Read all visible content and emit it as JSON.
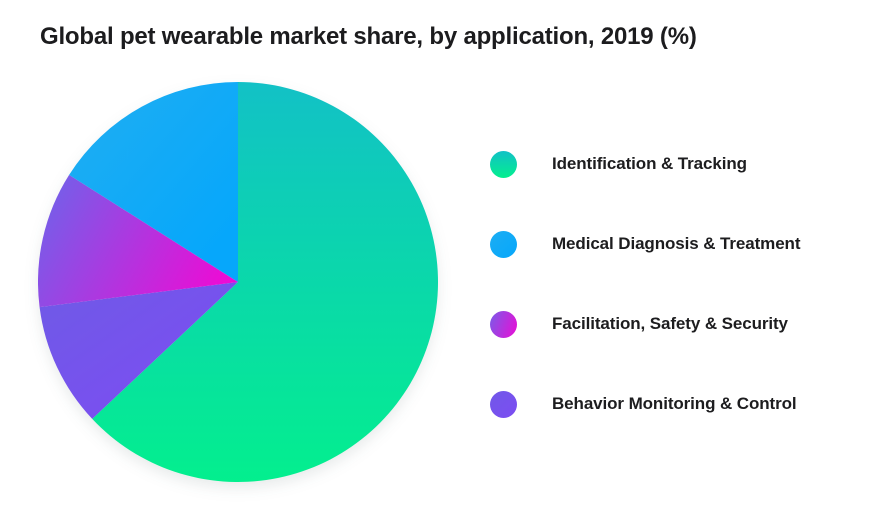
{
  "title": "Global pet wearable market share, by application, 2019 (%)",
  "chart_data": {
    "type": "pie",
    "title": "Global pet wearable market share, by application, 2019 (%)",
    "unit": "%",
    "year": "2019",
    "categories": [
      "Identification & Tracking",
      "Medical Diagnosis & Treatment",
      "Facilitation, Safety & Security",
      "Behavior Monitoring & Control"
    ],
    "values": [
      63,
      16,
      11,
      10
    ],
    "ids": [
      "identification-tracking",
      "medical-diagnosis-treatment",
      "facilitation-safety-security",
      "behavior-monitoring-control"
    ],
    "colors": [
      {
        "from": "#12C1C6",
        "to": "#03EF8E",
        "angle_deg": 180
      },
      {
        "from": "#1CADF3",
        "to": "#06A7FB",
        "angle_deg": 135
      },
      {
        "from": "#7A5BE8",
        "to": "#EB0DD5",
        "angle_deg": 110
      },
      {
        "from": "#7158E8",
        "to": "#7C4DF2",
        "angle_deg": 135
      }
    ],
    "start_angle_deg": 0,
    "draw_order_clockwise": [
      0,
      3,
      2,
      1
    ],
    "legend_position": "right",
    "grid": false,
    "data_labels": false
  }
}
